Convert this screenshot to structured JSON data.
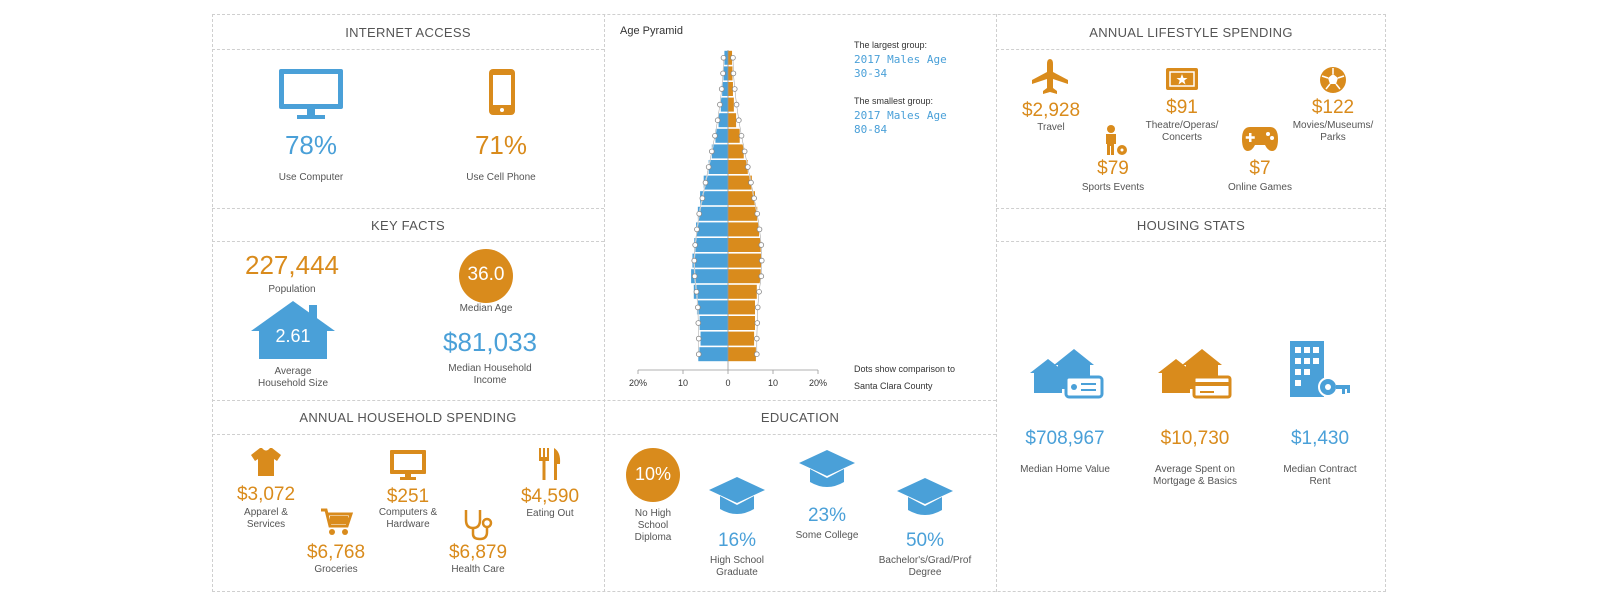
{
  "colors": {
    "blue": "#4aa0d8",
    "orange": "#d98b1c",
    "grid": "#cfcfcf"
  },
  "internet": {
    "title": "INTERNET ACCESS",
    "computer": {
      "value": "78%",
      "label": "Use Computer",
      "icon": "monitor-icon"
    },
    "phone": {
      "value": "71%",
      "label": "Use Cell Phone",
      "icon": "cell-phone-icon"
    }
  },
  "key_facts": {
    "title": "KEY FACTS",
    "population": {
      "value": "227,444",
      "label": "Population"
    },
    "median_age": {
      "value": "36.0",
      "label": "Median Age"
    },
    "household_size": {
      "value": "2.61",
      "label1": "Average",
      "label2": "Household Size"
    },
    "income": {
      "value": "$81,033",
      "label1": "Median Household",
      "label2": "Income"
    }
  },
  "household_spending": {
    "title": "ANNUAL HOUSEHOLD SPENDING",
    "apparel": {
      "value": "$3,072",
      "label1": "Apparel &",
      "label2": "Services"
    },
    "computers": {
      "value": "$251",
      "label1": "Computers &",
      "label2": "Hardware"
    },
    "eating": {
      "value": "$4,590",
      "label": "Eating Out"
    },
    "groceries": {
      "value": "$6,768",
      "label": "Groceries"
    },
    "health": {
      "value": "$6,879",
      "label": "Health Care"
    }
  },
  "pyramid": {
    "title": "Age Pyramid",
    "largest_label": "The largest group:",
    "largest_line1": "2017 Males Age",
    "largest_line2": "30-34",
    "smallest_label": "The smallest group:",
    "smallest_line1": "2017 Males Age",
    "smallest_line2": "80-84",
    "dots_note1": "Dots show comparison to",
    "dots_note2": "Santa Clara County"
  },
  "chart_data": {
    "type": "bar",
    "orientation": "horizontal-pyramid",
    "title": "Age Pyramid",
    "xlabel": "",
    "ylabel": "",
    "xlim": [
      -20,
      20
    ],
    "x_ticks": [
      "20%",
      "10",
      "0",
      "10",
      "20%"
    ],
    "series": [
      {
        "values": [
          0.8,
          1.0,
          1.3,
          1.6,
          2.1,
          2.8,
          3.6,
          4.3,
          5.4,
          6.2,
          6.7,
          7.1,
          7.5,
          7.9,
          8.2,
          7.6,
          6.9,
          6.3,
          6.1,
          6.6
        ]
      },
      {
        "values": [
          0.9,
          1.0,
          1.1,
          1.3,
          1.8,
          2.6,
          3.5,
          4.4,
          5.3,
          6.0,
          6.5,
          6.9,
          7.3,
          7.5,
          7.3,
          6.4,
          6.0,
          6.0,
          5.8,
          6.2
        ]
      }
    ],
    "comparison_dots_left": [
      1.0,
      1.1,
      1.4,
      1.8,
      2.3,
      2.9,
      3.6,
      4.3,
      5.0,
      5.7,
      6.4,
      6.9,
      7.3,
      7.5,
      7.4,
      7.0,
      6.7,
      6.6,
      6.5,
      6.5
    ],
    "comparison_dots_right": [
      1.1,
      1.2,
      1.5,
      1.9,
      2.4,
      3.0,
      3.7,
      4.4,
      5.1,
      5.8,
      6.5,
      7.0,
      7.4,
      7.5,
      7.4,
      6.9,
      6.6,
      6.5,
      6.4,
      6.4
    ],
    "grid": false
  },
  "lifestyle": {
    "title": "ANNUAL LIFESTYLE SPENDING",
    "travel": {
      "value": "$2,928",
      "label": "Travel"
    },
    "theatre": {
      "value": "$91",
      "label1": "Theatre/Operas/",
      "label2": "Concerts"
    },
    "movies": {
      "value": "$122",
      "label1": "Movies/Museums/",
      "label2": "Parks"
    },
    "sports": {
      "value": "$79",
      "label": "Sports Events"
    },
    "games": {
      "value": "$7",
      "label": "Online Games"
    }
  },
  "education": {
    "title": "EDUCATION",
    "no_hs": {
      "value": "10%",
      "label1": "No High",
      "label2": "School",
      "label3": "Diploma"
    },
    "hs": {
      "value": "16%",
      "label1": "High School",
      "label2": "Graduate"
    },
    "college": {
      "value": "23%",
      "label": "Some College"
    },
    "bachelor": {
      "value": "50%",
      "label1": "Bachelor's/Grad/Prof",
      "label2": "Degree"
    }
  },
  "housing": {
    "title": "HOUSING STATS",
    "home_value": {
      "value": "$708,967",
      "label": "Median Home Value"
    },
    "mortgage": {
      "value": "$10,730",
      "label1": "Average Spent on",
      "label2": "Mortgage & Basics"
    },
    "rent": {
      "value": "$1,430",
      "label1": "Median Contract",
      "label2": "Rent"
    }
  }
}
